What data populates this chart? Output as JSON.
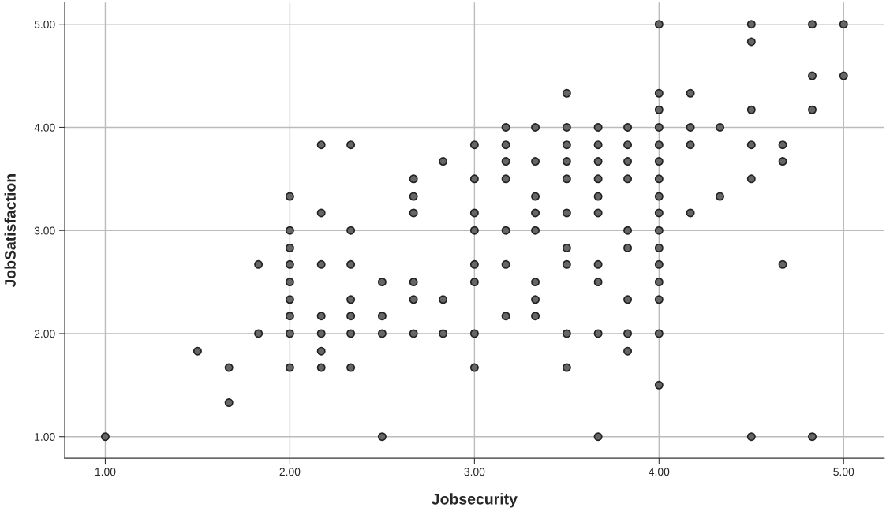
{
  "chart_data": {
    "type": "scatter",
    "xlabel": "Jobsecurity",
    "ylabel": "JobSatisfaction",
    "xlim": [
      0.78,
      5.22
    ],
    "ylim": [
      0.79,
      5.21
    ],
    "xticks": [
      {
        "value": 1,
        "label": "1.00"
      },
      {
        "value": 2,
        "label": "2.00"
      },
      {
        "value": 3,
        "label": "3.00"
      },
      {
        "value": 4,
        "label": "4.00"
      },
      {
        "value": 5,
        "label": "5.00"
      }
    ],
    "yticks": [
      {
        "value": 1,
        "label": "1.00"
      },
      {
        "value": 2,
        "label": "2.00"
      },
      {
        "value": 3,
        "label": "3.00"
      },
      {
        "value": 4,
        "label": "4.00"
      },
      {
        "value": 5,
        "label": "5.00"
      }
    ],
    "grid": true,
    "marker": "circle",
    "series": [
      {
        "color": "#666666",
        "x": [
          1,
          1.5,
          1.67,
          1.67,
          1.83,
          1.83,
          2,
          2,
          2,
          2,
          2,
          2,
          2,
          2,
          2,
          2.17,
          2.17,
          2.17,
          2.17,
          2.17,
          2.17,
          2.17,
          2.33,
          2.33,
          2.33,
          2.33,
          2.33,
          2.33,
          2.33,
          2.5,
          2.5,
          2.5,
          2.5,
          2.67,
          2.67,
          2.67,
          2.67,
          2.67,
          2.67,
          2.83,
          2.83,
          2.83,
          3,
          3,
          3,
          3,
          3,
          3,
          3,
          3,
          3.17,
          3.17,
          3.17,
          3.17,
          3.17,
          3.17,
          3.17,
          3.33,
          3.33,
          3.33,
          3.33,
          3.33,
          3.33,
          3.33,
          3.33,
          3.5,
          3.5,
          3.5,
          3.5,
          3.5,
          3.5,
          3.5,
          3.5,
          3.5,
          3.5,
          3.67,
          3.67,
          3.67,
          3.67,
          3.67,
          3.67,
          3.67,
          3.67,
          3.67,
          3.67,
          3.83,
          3.83,
          3.83,
          3.83,
          3.83,
          3.83,
          3.83,
          3.83,
          3.83,
          4,
          4,
          4,
          4,
          4,
          4,
          4,
          4,
          4,
          4,
          4,
          4,
          4,
          4,
          4,
          4,
          4.17,
          4.17,
          4.17,
          4.17,
          4.33,
          4.33,
          4.5,
          4.5,
          4.5,
          4.5,
          4.5,
          4.5,
          4.67,
          4.67,
          4.67,
          4.83,
          4.83,
          4.83,
          4.83,
          5,
          5
        ],
        "values": [
          1,
          1.83,
          1.67,
          1.33,
          2.67,
          2,
          3.33,
          3,
          2.83,
          2.67,
          2.5,
          2.33,
          2.17,
          2,
          1.67,
          3.83,
          3.17,
          2.67,
          2.17,
          2,
          1.83,
          1.67,
          3.83,
          3,
          2.67,
          2.33,
          2.17,
          2,
          1.67,
          2.5,
          2.17,
          2,
          1,
          3.5,
          3.33,
          3.17,
          2.5,
          2.33,
          2,
          3.67,
          2.33,
          2,
          3.83,
          3.5,
          3.17,
          3,
          2.67,
          2.5,
          2,
          1.67,
          4,
          3.83,
          3.67,
          3.5,
          3,
          2.67,
          2.17,
          4,
          3.67,
          3.33,
          3.17,
          3,
          2.5,
          2.33,
          2.17,
          4.33,
          4,
          3.83,
          3.67,
          3.5,
          3.17,
          2.83,
          2.67,
          2,
          1.67,
          4,
          3.83,
          3.67,
          3.5,
          3.33,
          3.17,
          2.67,
          2.5,
          2,
          1,
          4,
          3.83,
          3.67,
          3.5,
          3,
          2.83,
          2.33,
          2,
          1.83,
          5,
          4.33,
          4.17,
          4,
          3.83,
          3.67,
          3.5,
          3.33,
          3.17,
          3,
          2.83,
          2.67,
          2.5,
          2.33,
          2,
          1.5,
          4.33,
          4,
          3.83,
          3.17,
          4,
          3.33,
          5,
          4.83,
          4.17,
          3.83,
          3.5,
          1,
          3.83,
          3.67,
          2.67,
          5,
          4.5,
          4.17,
          1,
          5,
          4.5
        ]
      }
    ]
  }
}
